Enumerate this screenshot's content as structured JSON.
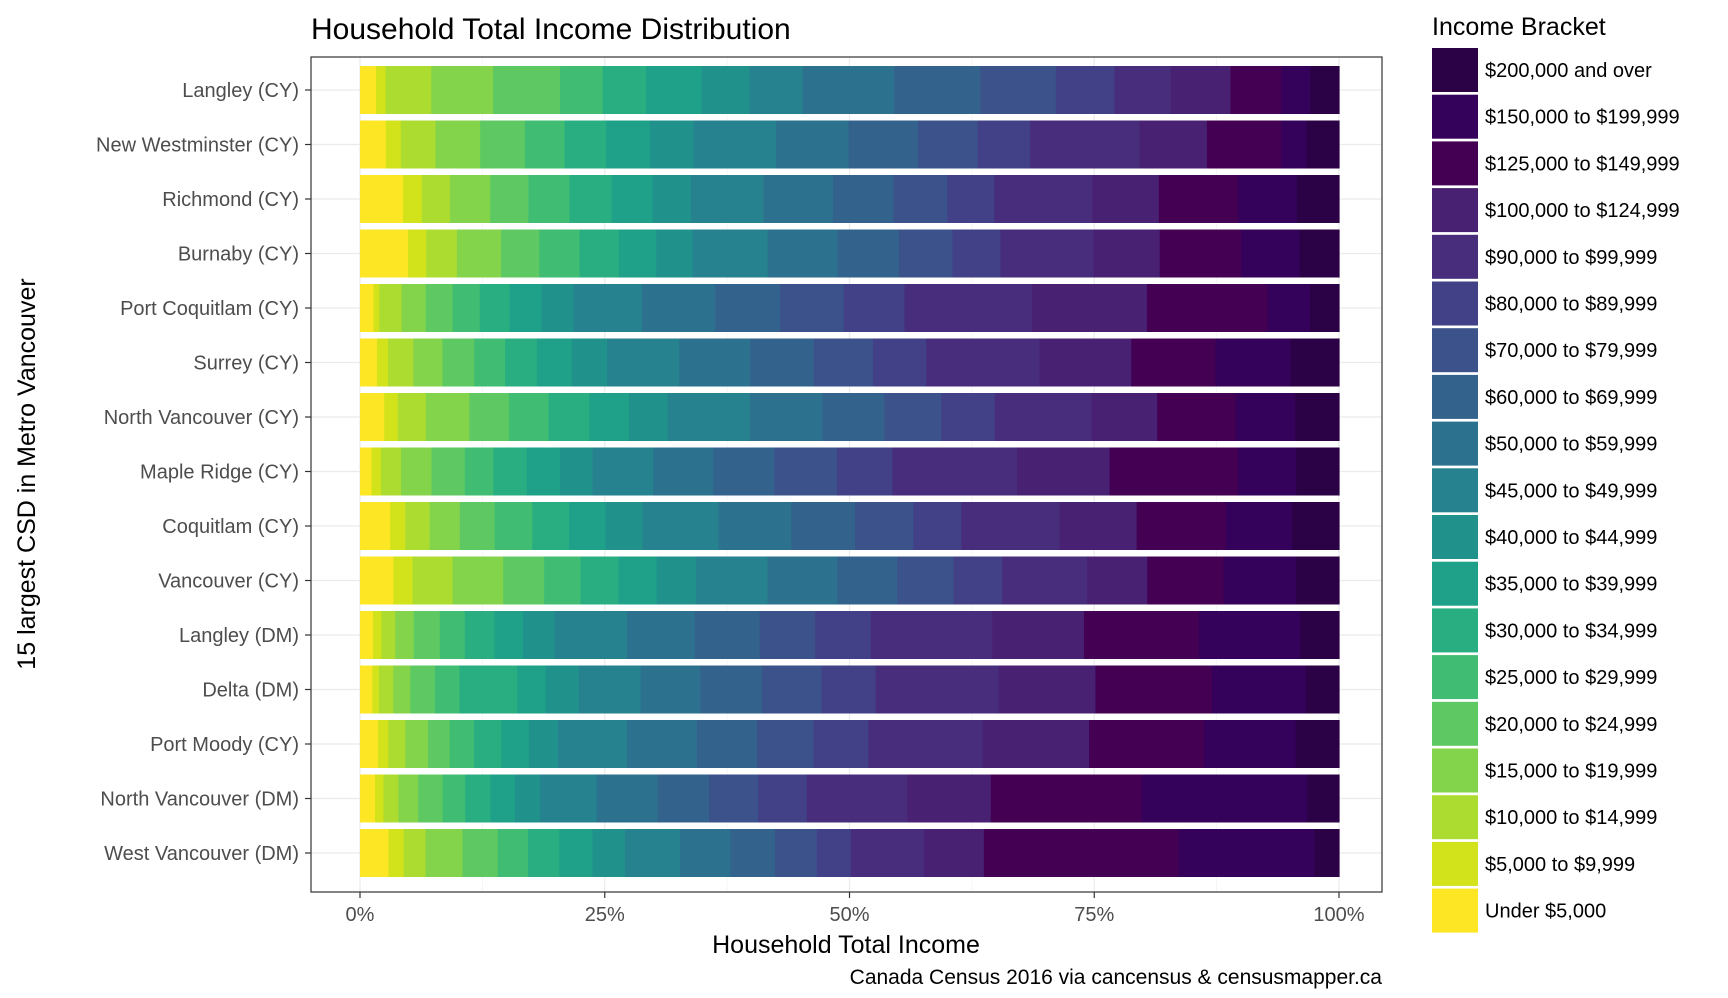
{
  "chart_data": {
    "type": "bar",
    "orientation": "horizontal-stacked-percent",
    "title": "Household Total Income Distribution",
    "xlabel": "Household Total Income",
    "ylabel": "15 largest CSD in Metro Vancouver",
    "caption": "Canada Census 2016 via cancensus & censusmapper.ca",
    "legend_title": "Income Bracket",
    "legend_position": "right",
    "xlim": [
      0,
      100
    ],
    "xticks": [
      0,
      25,
      50,
      75,
      100
    ],
    "xtick_labels": [
      "0%",
      "25%",
      "50%",
      "75%",
      "100%"
    ],
    "grid": true,
    "categories": [
      "Langley (CY)",
      "New Westminster (CY)",
      "Richmond (CY)",
      "Burnaby (CY)",
      "Port Coquitlam (CY)",
      "Surrey (CY)",
      "North Vancouver (CY)",
      "Maple Ridge (CY)",
      "Coquitlam (CY)",
      "Vancouver (CY)",
      "Langley (DM)",
      "Delta (DM)",
      "Port Moody (CY)",
      "North Vancouver (DM)",
      "West Vancouver (DM)"
    ],
    "series": [
      {
        "name": "Under $5,000",
        "color": "#FDE725",
        "values": [
          1.5,
          2.6,
          4.4,
          5.0,
          1.4,
          1.8,
          2.5,
          1.2,
          3.2,
          3.5,
          1.4,
          1.3,
          1.9,
          1.6,
          3.0
        ]
      },
      {
        "name": "$5,000 to $9,999",
        "color": "#D2E21B",
        "values": [
          0.9,
          1.5,
          1.9,
          1.9,
          0.6,
          1.2,
          1.4,
          1.0,
          1.6,
          2.0,
          0.9,
          0.7,
          1.1,
          0.9,
          1.6
        ]
      },
      {
        "name": "$10,000 to $14,999",
        "color": "#ADDC30",
        "values": [
          4.3,
          3.5,
          2.9,
          3.2,
          2.3,
          2.7,
          2.9,
          2.1,
          2.6,
          4.2,
          1.5,
          1.5,
          1.8,
          1.6,
          2.3
        ]
      },
      {
        "name": "$15,000 to $19,999",
        "color": "#84D44B",
        "values": [
          5.8,
          4.5,
          4.1,
          4.6,
          2.5,
          3.1,
          4.5,
          3.2,
          3.2,
          5.3,
          2.0,
          1.8,
          2.4,
          2.1,
          3.9
        ]
      },
      {
        "name": "$20,000 to $24,999",
        "color": "#5EC962",
        "values": [
          6.3,
          4.5,
          3.9,
          4.0,
          2.8,
          3.4,
          4.1,
          3.5,
          3.7,
          4.3,
          2.8,
          2.6,
          2.3,
          2.6,
          3.7
        ]
      },
      {
        "name": "$25,000 to $29,999",
        "color": "#40BD72",
        "values": [
          4.0,
          4.0,
          4.2,
          4.2,
          2.8,
          3.3,
          4.1,
          3.0,
          4.0,
          3.8,
          2.7,
          2.6,
          2.6,
          2.4,
          3.2
        ]
      },
      {
        "name": "$30,000 to $34,999",
        "color": "#28AE80",
        "values": [
          4.1,
          4.2,
          4.3,
          4.1,
          3.1,
          3.4,
          4.2,
          3.5,
          3.9,
          4.0,
          3.2,
          6.1,
          2.9,
          2.7,
          3.3
        ]
      },
      {
        "name": "$35,000 to $39,999",
        "color": "#1FA088",
        "values": [
          5.2,
          4.4,
          4.2,
          3.9,
          3.3,
          3.7,
          4.1,
          3.5,
          3.9,
          4.0,
          3.1,
          3.0,
          2.9,
          2.6,
          3.5
        ]
      },
      {
        "name": "$40,000 to $44,999",
        "color": "#21918C",
        "values": [
          4.5,
          4.4,
          3.9,
          3.8,
          3.3,
          3.8,
          4.0,
          3.4,
          3.9,
          4.1,
          3.4,
          3.5,
          3.1,
          2.7,
          3.4
        ]
      },
      {
        "name": "$45,000 to $49,999",
        "color": "#26828E",
        "values": [
          5.0,
          8.3,
          7.4,
          7.8,
          7.1,
          7.7,
          8.5,
          6.4,
          8.1,
          7.5,
          7.8,
          6.5,
          7.3,
          6.0,
          5.8
        ]
      },
      {
        "name": "$50,000 to $59,999",
        "color": "#2C728E",
        "values": [
          8.6,
          7.3,
          7.1,
          7.3,
          7.6,
          7.6,
          7.5,
          6.3,
          7.7,
          7.3,
          7.3,
          6.3,
          7.4,
          6.5,
          5.3
        ]
      },
      {
        "name": "$60,000 to $69,999",
        "color": "#33638D",
        "values": [
          8.1,
          7.0,
          6.2,
          6.4,
          6.7,
          6.8,
          6.4,
          6.4,
          6.8,
          6.3,
          7.0,
          6.5,
          6.4,
          5.5,
          4.7
        ]
      },
      {
        "name": "$70,000 to $79,999",
        "color": "#3B528B",
        "values": [
          7.1,
          6.0,
          5.5,
          5.6,
          6.6,
          6.3,
          5.9,
          6.6,
          6.2,
          5.9,
          6.0,
          6.3,
          6.0,
          5.2,
          4.4
        ]
      },
      {
        "name": "$80,000 to $89,999",
        "color": "#424086",
        "values": [
          5.5,
          5.3,
          4.8,
          5.0,
          6.3,
          5.7,
          5.5,
          5.8,
          5.1,
          5.1,
          6.0,
          5.7,
          5.8,
          5.2,
          3.6
        ]
      },
      {
        "name": "$90,000 to $99,999",
        "color": "#472D7B",
        "values": [
          5.3,
          11.0,
          10.0,
          9.7,
          13.2,
          12.1,
          10.0,
          13.1,
          10.4,
          8.9,
          13.1,
          13.0,
          12.1,
          10.7,
          7.7
        ]
      },
      {
        "name": "$100,000 to $124,999",
        "color": "#482173",
        "values": [
          5.6,
          6.8,
          6.8,
          6.9,
          11.9,
          9.8,
          6.8,
          9.7,
          8.2,
          6.3,
          9.9,
          10.2,
          11.3,
          8.9,
          6.3
        ]
      },
      {
        "name": "$125,000 to $149,999",
        "color": "#440154",
        "values": [
          4.8,
          7.5,
          8.1,
          8.5,
          12.5,
          9.0,
          8.1,
          13.5,
          9.5,
          8.0,
          12.4,
          12.3,
          12.2,
          16.1,
          20.5
        ]
      },
      {
        "name": "$150,000 to $199,999",
        "color": "#34025A",
        "values": [
          2.7,
          2.5,
          6.0,
          6.1,
          4.4,
          8.0,
          6.2,
          6.1,
          7.0,
          7.6,
          10.9,
          9.9,
          9.7,
          17.6,
          14.3
        ]
      },
      {
        "name": "$200,000 and over",
        "color": "#2B0246",
        "values": [
          2.7,
          3.3,
          4.3,
          4.1,
          3.0,
          5.2,
          4.5,
          4.5,
          5.0,
          4.5,
          4.2,
          3.5,
          4.6,
          3.4,
          2.6
        ]
      }
    ]
  }
}
